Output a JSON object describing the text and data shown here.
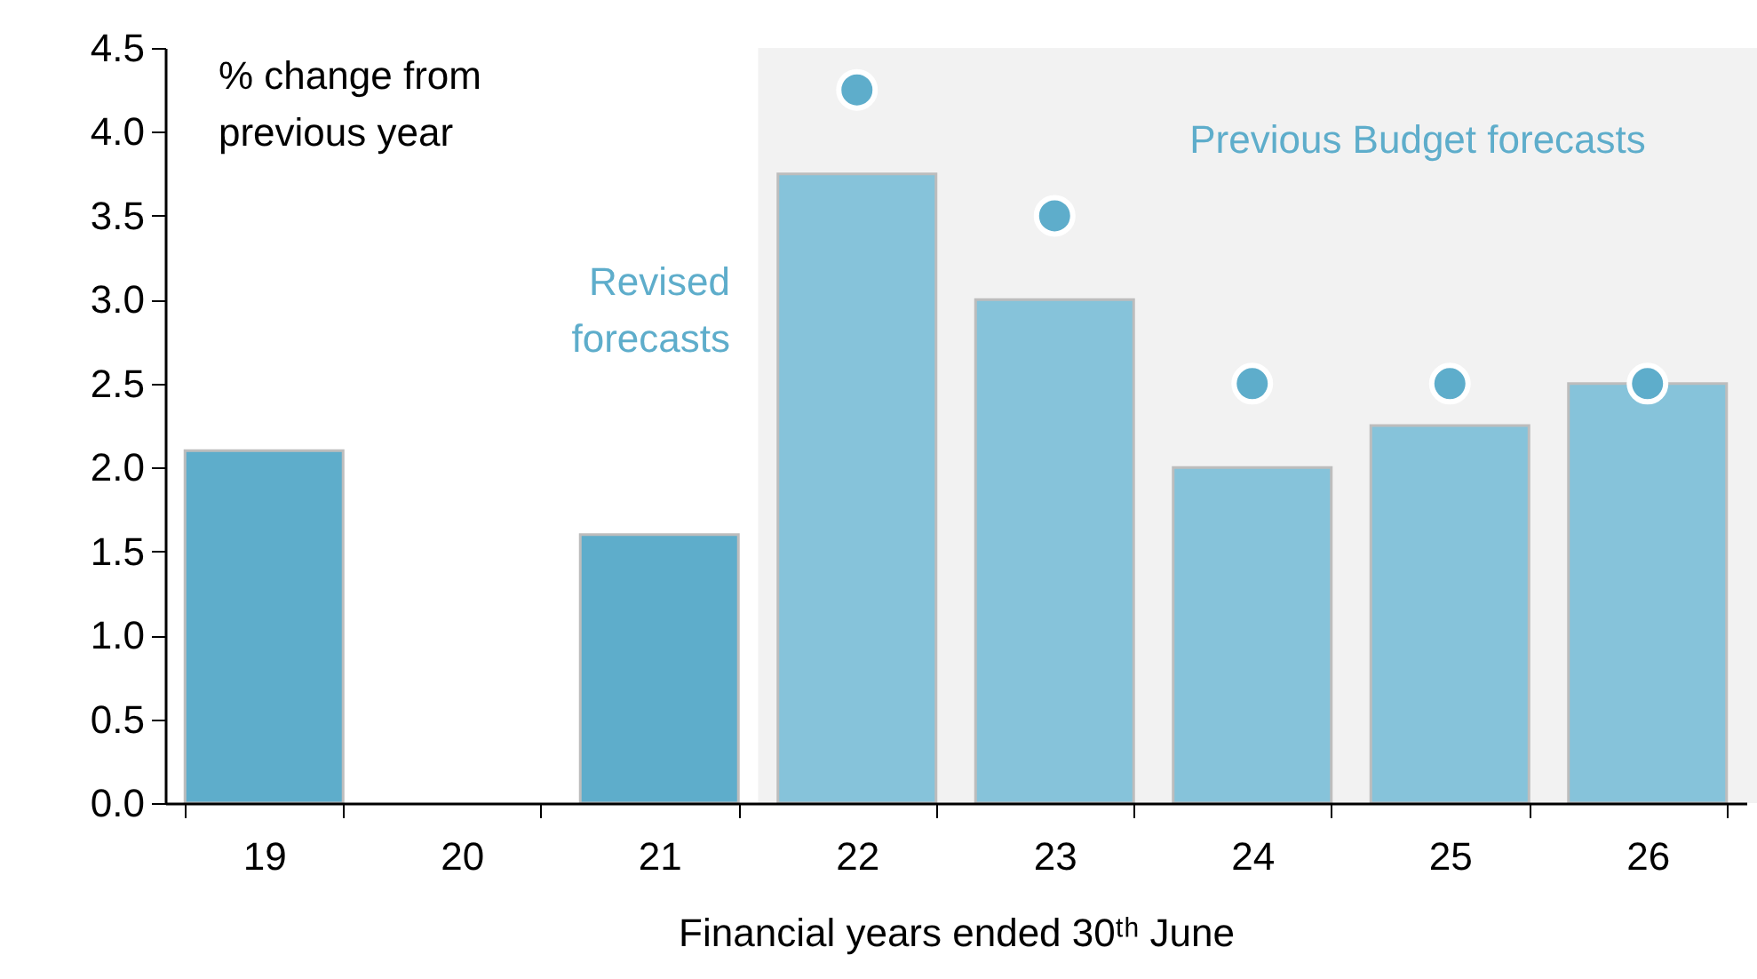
{
  "chart_data": {
    "type": "bar",
    "ylabel": "% change from\nprevious year",
    "xlabel": "Financial years ended 30ᵗʰ June",
    "categories": [
      "19",
      "20",
      "21",
      "22",
      "23",
      "24",
      "25",
      "26"
    ],
    "series": [
      {
        "values": [
          2.1,
          null,
          1.6,
          3.75,
          3.0,
          2.0,
          2.25,
          2.5
        ],
        "colors": [
          "#5eadcb",
          "#5eadcb",
          "#5eadcb",
          "#86c3da",
          "#86c3da",
          "#86c3da",
          "#86c3da",
          "#86c3da"
        ]
      },
      {
        "type": "scatter",
        "values": [
          null,
          null,
          null,
          4.25,
          3.5,
          2.5,
          2.5,
          2.5
        ],
        "color": "#5eadcb"
      }
    ],
    "ylim": [
      0,
      4.5
    ],
    "yticks": [
      {
        "value": 0,
        "label": "0.0"
      },
      0.5,
      {
        "value": 1,
        "label": "1.0"
      },
      1.5,
      {
        "value": 2,
        "label": "2.0"
      },
      2.5,
      {
        "value": 3,
        "label": "3.0"
      },
      3.5,
      {
        "value": 4,
        "label": "4.0"
      },
      4.5
    ],
    "bands": [
      {
        "axis": "x",
        "from": "22",
        "to": "26",
        "color": "#f2f2f2"
      }
    ],
    "annotations": [
      "Revised\nforecasts",
      "Previous Budget forecasts"
    ],
    "grid": false,
    "marker": "circle"
  }
}
